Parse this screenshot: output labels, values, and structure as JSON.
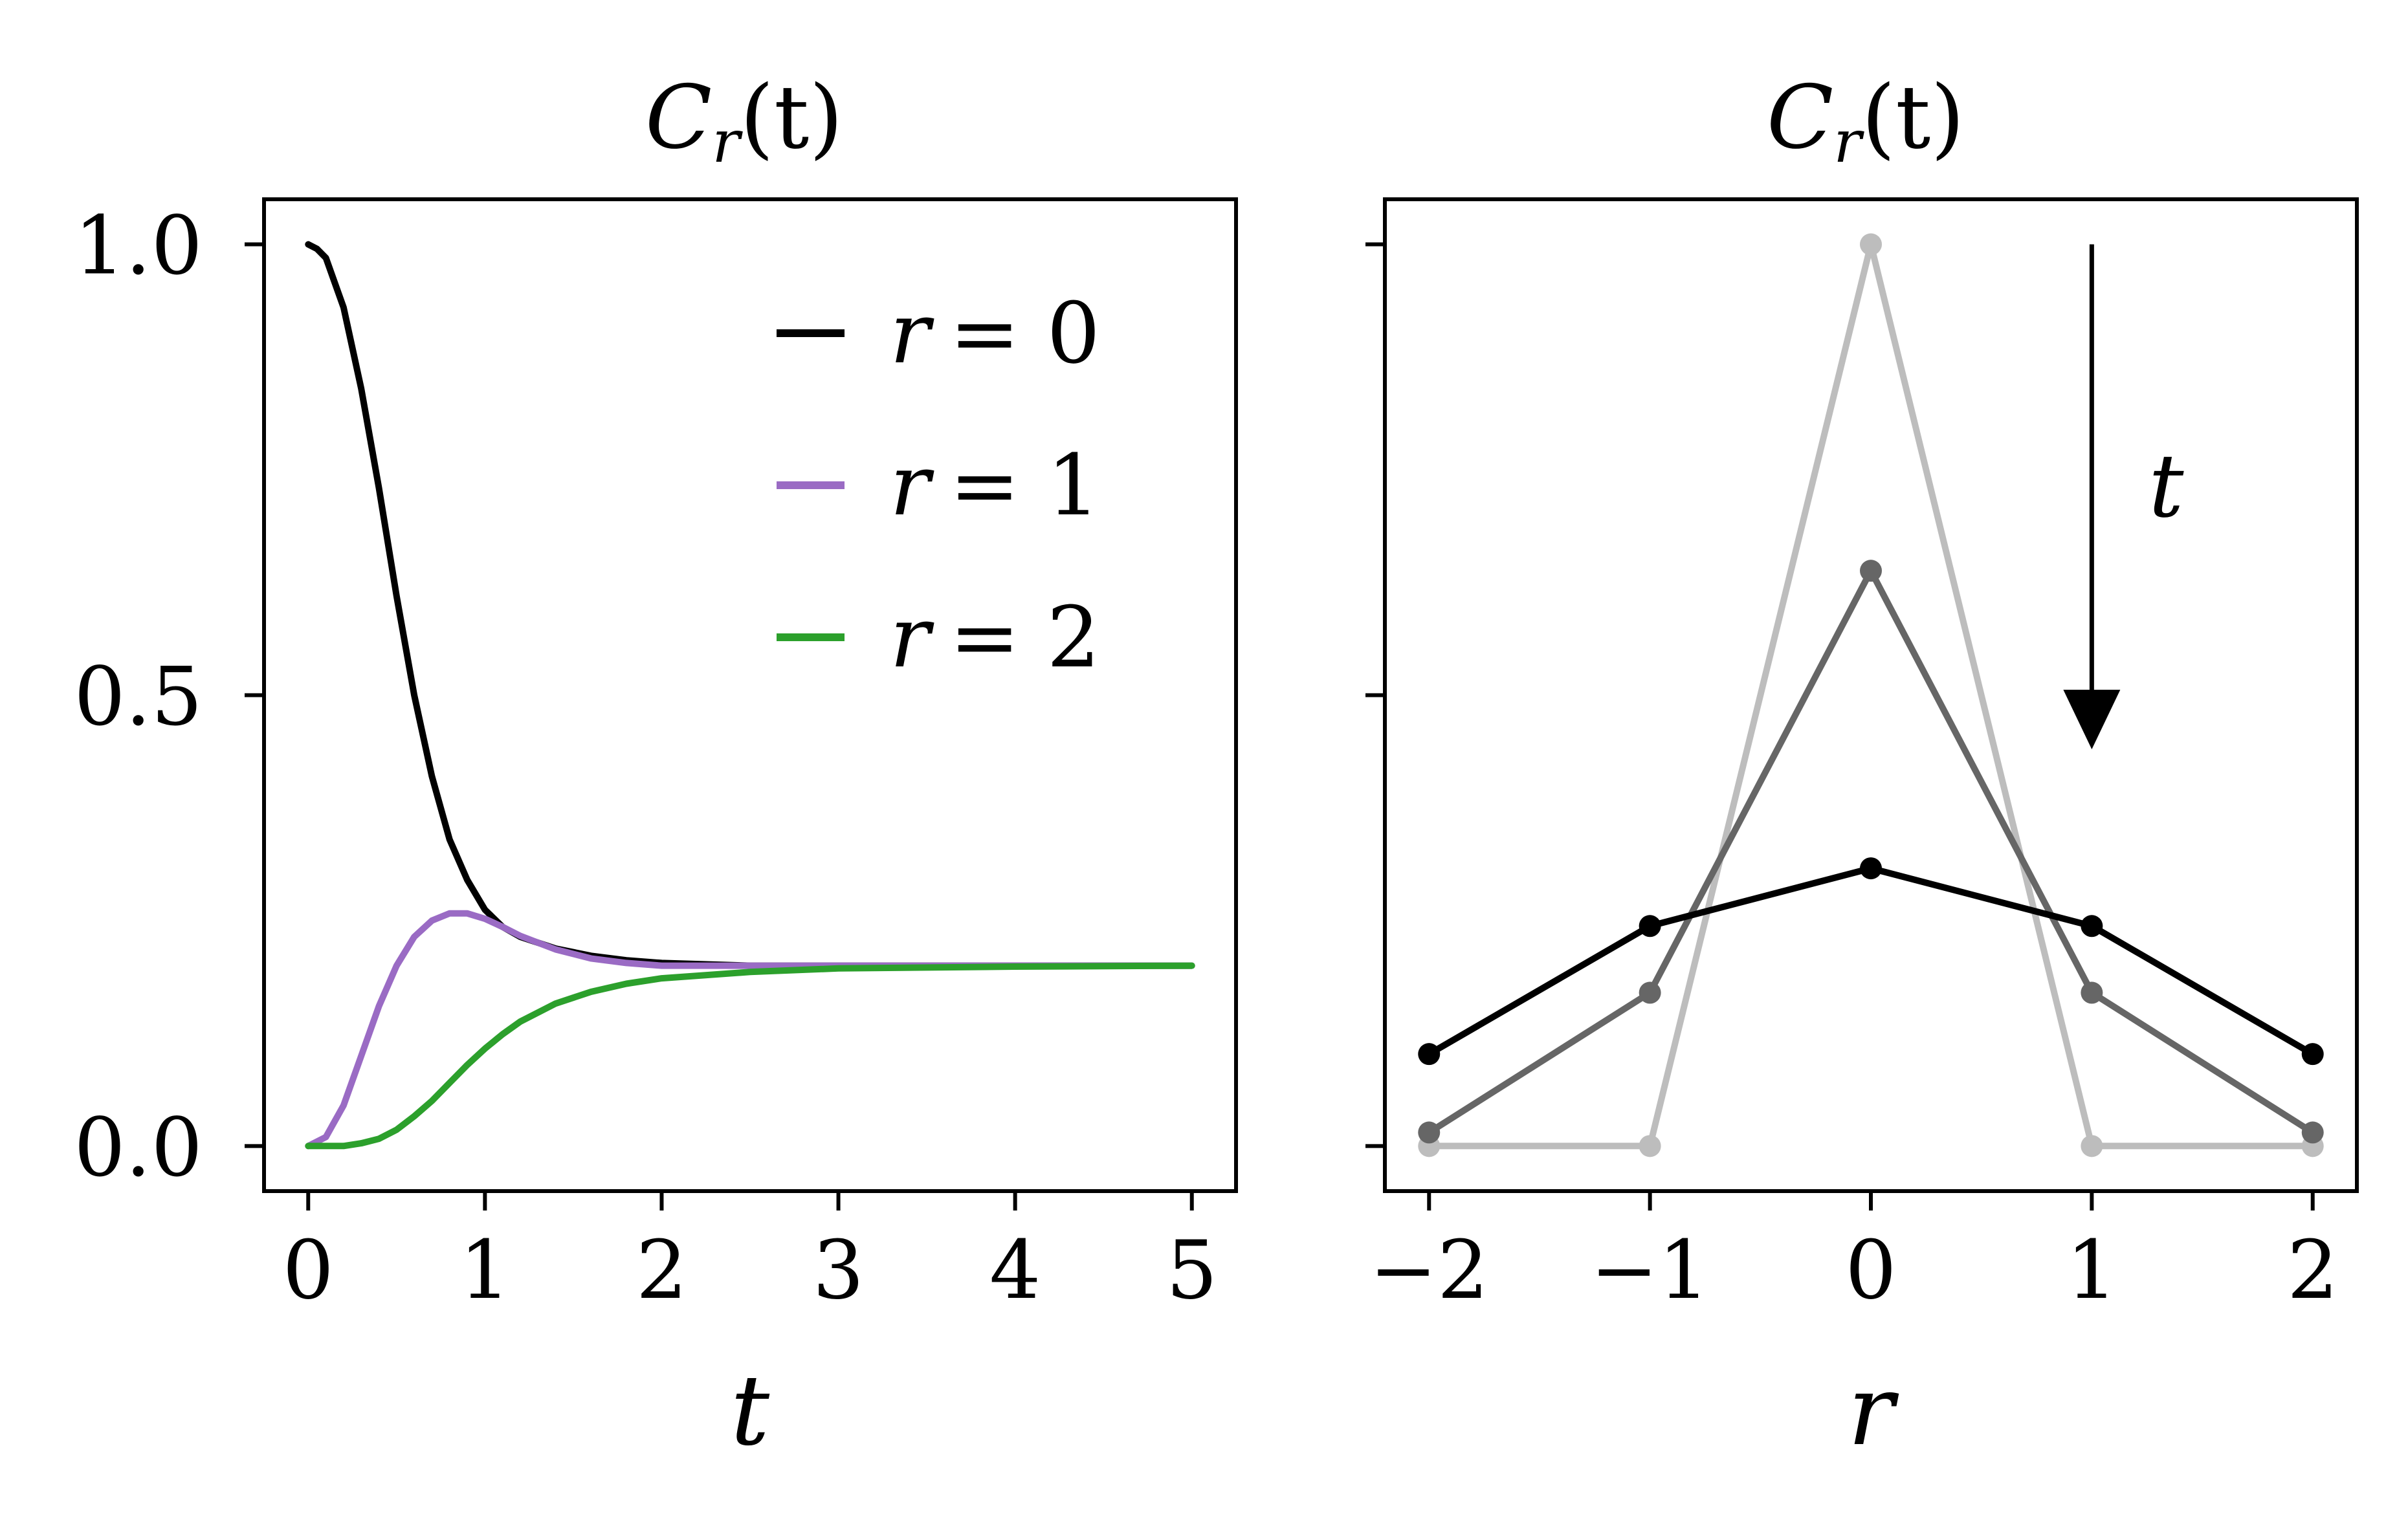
{
  "chart_data": [
    {
      "type": "line",
      "title": {
        "main": "C",
        "sub": "r",
        "tail": "(t)"
      },
      "xlabel": "t",
      "ylabel": "",
      "xlim": [
        -0.25,
        5.25
      ],
      "ylim": [
        -0.05,
        1.05
      ],
      "xticks": [
        0,
        1,
        2,
        3,
        4,
        5
      ],
      "xtick_labels": [
        "0",
        "1",
        "2",
        "3",
        "4",
        "5"
      ],
      "yticks": [
        0.0,
        0.5,
        1.0
      ],
      "ytick_labels": [
        "0.0",
        "0.5",
        "1.0"
      ],
      "grid": false,
      "legend_position": "top-right",
      "series": [
        {
          "name": "r = 0",
          "label_var": "r",
          "label_eq": "= 0",
          "color": "#000000",
          "points": [
            [
              0,
              1.0
            ],
            [
              0.05,
              0.995
            ],
            [
              0.1,
              0.985
            ],
            [
              0.2,
              0.93
            ],
            [
              0.3,
              0.84
            ],
            [
              0.4,
              0.73
            ],
            [
              0.5,
              0.61
            ],
            [
              0.6,
              0.5
            ],
            [
              0.7,
              0.41
            ],
            [
              0.8,
              0.34
            ],
            [
              0.9,
              0.295
            ],
            [
              1.0,
              0.262
            ],
            [
              1.1,
              0.243
            ],
            [
              1.2,
              0.232
            ],
            [
              1.4,
              0.219
            ],
            [
              1.6,
              0.211
            ],
            [
              1.8,
              0.206
            ],
            [
              2.0,
              0.203
            ],
            [
              2.5,
              0.2
            ],
            [
              3.0,
              0.2
            ],
            [
              4.0,
              0.2
            ],
            [
              5.0,
              0.2
            ]
          ]
        },
        {
          "name": "r = 1",
          "label_var": "r",
          "label_eq": "= 1",
          "color": "#9a6bc4",
          "points": [
            [
              0,
              0.0
            ],
            [
              0.1,
              0.01
            ],
            [
              0.2,
              0.045
            ],
            [
              0.3,
              0.1
            ],
            [
              0.4,
              0.155
            ],
            [
              0.5,
              0.2
            ],
            [
              0.6,
              0.232
            ],
            [
              0.7,
              0.25
            ],
            [
              0.8,
              0.258
            ],
            [
              0.9,
              0.258
            ],
            [
              1.0,
              0.252
            ],
            [
              1.1,
              0.243
            ],
            [
              1.2,
              0.233
            ],
            [
              1.4,
              0.218
            ],
            [
              1.6,
              0.208
            ],
            [
              1.8,
              0.203
            ],
            [
              2.0,
              0.2
            ],
            [
              2.5,
              0.2
            ],
            [
              3.0,
              0.2
            ],
            [
              5.0,
              0.2
            ]
          ]
        },
        {
          "name": "r = 2",
          "label_var": "r",
          "label_eq": "= 2",
          "color": "#2ca02c",
          "points": [
            [
              0,
              0.0
            ],
            [
              0.2,
              0.0
            ],
            [
              0.3,
              0.003
            ],
            [
              0.4,
              0.008
            ],
            [
              0.5,
              0.018
            ],
            [
              0.6,
              0.033
            ],
            [
              0.7,
              0.05
            ],
            [
              0.8,
              0.07
            ],
            [
              0.9,
              0.09
            ],
            [
              1.0,
              0.108
            ],
            [
              1.1,
              0.124
            ],
            [
              1.2,
              0.138
            ],
            [
              1.4,
              0.158
            ],
            [
              1.6,
              0.171
            ],
            [
              1.8,
              0.18
            ],
            [
              2.0,
              0.186
            ],
            [
              2.5,
              0.193
            ],
            [
              3.0,
              0.197
            ],
            [
              4.0,
              0.199
            ],
            [
              5.0,
              0.2
            ]
          ]
        }
      ]
    },
    {
      "type": "line",
      "title": {
        "main": "C",
        "sub": "r",
        "tail": "(t)"
      },
      "xlabel": "r",
      "ylabel": "",
      "xlim": [
        -2.2,
        2.2
      ],
      "ylim": [
        -0.05,
        1.05
      ],
      "xticks": [
        -2,
        -1,
        0,
        1,
        2
      ],
      "xtick_labels": [
        "−2",
        "−1",
        "0",
        "1",
        "2"
      ],
      "yticks": [
        0.0,
        0.5,
        1.0
      ],
      "ytick_labels": [
        "",
        "",
        ""
      ],
      "grid": false,
      "annotation": {
        "text": "t",
        "arrow": "down",
        "x": 1.0,
        "y_from": 1.0,
        "y_to": 0.44
      },
      "series": [
        {
          "color": "#bdbdbd",
          "x": [
            -2,
            -1,
            0,
            1,
            2
          ],
          "values": [
            0.0,
            0.0,
            1.0,
            0.0,
            0.0
          ]
        },
        {
          "color": "#666666",
          "x": [
            -2,
            -1,
            0,
            1,
            2
          ],
          "values": [
            0.015,
            0.17,
            0.638,
            0.17,
            0.015
          ]
        },
        {
          "color": "#000000",
          "x": [
            -2,
            -1,
            0,
            1,
            2
          ],
          "values": [
            0.102,
            0.244,
            0.308,
            0.244,
            0.102
          ]
        }
      ]
    }
  ]
}
